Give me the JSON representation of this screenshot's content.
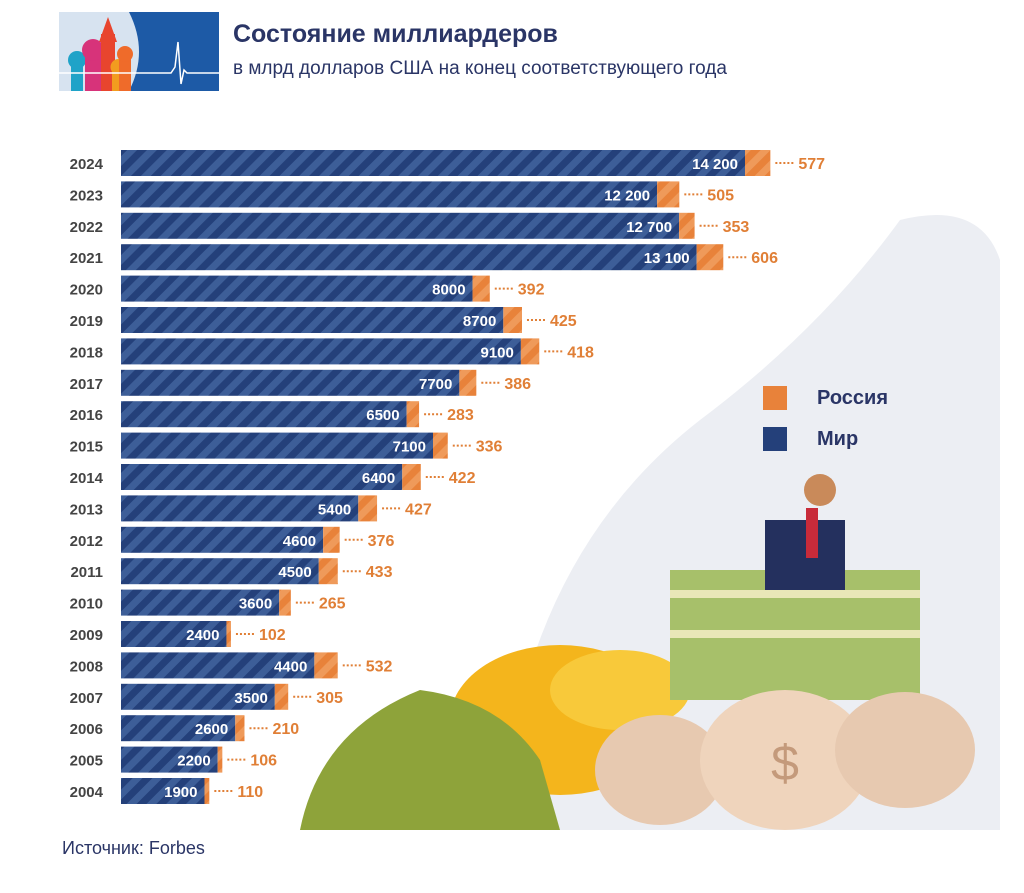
{
  "header": {
    "title": "Состояние миллиардеров",
    "subtitle": "в млрд долларов США на конец соответствующего года"
  },
  "source": "Источник: Forbes",
  "colors": {
    "world": "#24407a",
    "world_stripe": "#3d5e98",
    "russia": "#e8823a",
    "russia_label": "#e07f36",
    "title": "#2a3566"
  },
  "chart_data": {
    "type": "bar",
    "orientation": "horizontal",
    "stacked": true,
    "categories": [
      "2024",
      "2023",
      "2022",
      "2021",
      "2020",
      "2019",
      "2018",
      "2017",
      "2016",
      "2015",
      "2014",
      "2013",
      "2012",
      "2011",
      "2010",
      "2009",
      "2008",
      "2007",
      "2006",
      "2005",
      "2004"
    ],
    "series": [
      {
        "name": "Мир",
        "values": [
          14200,
          12200,
          12700,
          13100,
          8000,
          8700,
          9100,
          7700,
          6500,
          7100,
          6400,
          5400,
          4600,
          4500,
          3600,
          2400,
          4400,
          3500,
          2600,
          2200,
          1900
        ],
        "labels": [
          "14 200",
          "12 200",
          "12 700",
          "13 100",
          "8000",
          "8700",
          "9100",
          "7700",
          "6500",
          "7100",
          "6400",
          "5400",
          "4600",
          "4500",
          "3600",
          "2400",
          "4400",
          "3500",
          "2600",
          "2200",
          "1900"
        ]
      },
      {
        "name": "Россия",
        "values": [
          577,
          505,
          353,
          606,
          392,
          425,
          418,
          386,
          283,
          336,
          422,
          427,
          376,
          433,
          265,
          102,
          532,
          305,
          210,
          106,
          110
        ]
      }
    ],
    "legend": {
      "position": "right",
      "entries": [
        "Россия",
        "Мир"
      ]
    },
    "grid": false
  }
}
